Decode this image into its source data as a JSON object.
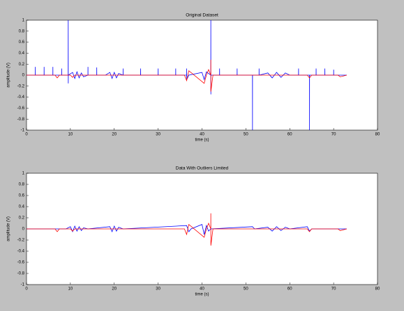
{
  "chart_data": [
    {
      "type": "line",
      "title": "Original Dataset",
      "xlabel": "time (s)",
      "ylabel": "amplitude (V)",
      "xlim": [
        0,
        80
      ],
      "ylim": [
        -1,
        1
      ],
      "xticks": [
        0,
        10,
        20,
        30,
        40,
        50,
        60,
        70,
        80
      ],
      "yticks": [
        -1,
        -0.8,
        -0.6,
        -0.4,
        -0.2,
        0,
        0.2,
        0.4,
        0.6,
        0.8,
        1
      ],
      "series": [
        {
          "color": "#0000ff",
          "x": [
            0,
            2,
            2.01,
            2.02,
            4,
            4.01,
            4.02,
            6,
            6.01,
            6.02,
            8,
            8.01,
            8.02,
            9.5,
            9.51,
            9.52,
            9.53,
            10.5,
            11,
            11.5,
            12,
            12.5,
            13,
            14,
            14.01,
            14.02,
            16,
            16.01,
            16.02,
            18,
            19,
            19.5,
            20,
            20.5,
            21,
            22,
            22.01,
            22.02,
            26,
            26.01,
            26.02,
            30,
            30.01,
            30.02,
            34,
            34.01,
            34.02,
            36.5,
            36.51,
            36.52,
            37,
            40,
            40.5,
            41,
            42,
            42.01,
            42.02,
            42.03,
            44,
            44.01,
            44.02,
            48,
            48.01,
            48.02,
            51.5,
            51.51,
            51.52,
            53,
            53.01,
            53.02,
            55,
            56,
            57,
            58,
            59,
            60,
            62,
            62.01,
            62.02,
            64.5,
            64.51,
            64.52,
            66,
            66.01,
            66.02,
            68,
            68.01,
            68.02,
            70,
            70.01,
            70.02,
            73
          ],
          "values": [
            0,
            0,
            0.15,
            0,
            0,
            0.15,
            0,
            0,
            0.15,
            0,
            0,
            0.12,
            0,
            0,
            1,
            -0.15,
            0,
            0.05,
            -0.06,
            0.06,
            -0.05,
            0.04,
            -0.03,
            0,
            0.15,
            0,
            0,
            0.14,
            0,
            0,
            0.05,
            -0.06,
            0.05,
            -0.05,
            0.03,
            0,
            0.12,
            0,
            0,
            0.12,
            0,
            0,
            0.12,
            0,
            0,
            0.12,
            0,
            0,
            0.12,
            -0.08,
            0,
            0.05,
            -0.08,
            0.06,
            0,
            1,
            -0.35,
            0,
            0,
            0.12,
            0,
            0,
            0.12,
            0,
            0,
            -1,
            0,
            0,
            0.12,
            0,
            0.04,
            -0.05,
            0.05,
            -0.04,
            0.04,
            0,
            0,
            0.12,
            0,
            0,
            -1,
            0,
            0,
            0.12,
            0,
            0,
            0.12,
            0,
            0,
            0.1,
            0,
            0
          ]
        },
        {
          "color": "#ff0000",
          "x": [
            0,
            6.5,
            7,
            7.5,
            10,
            10.5,
            11,
            36,
            36.5,
            37,
            40.5,
            41,
            41.5,
            42,
            42.01,
            42.02,
            42.5,
            64,
            64.5,
            65,
            71,
            71.5,
            73
          ],
          "values": [
            0,
            0,
            -0.05,
            0,
            0,
            -0.04,
            0,
            0,
            -0.1,
            0.08,
            -0.15,
            0,
            0.1,
            0,
            0.28,
            -0.3,
            0,
            0,
            -0.05,
            0,
            0,
            -0.03,
            0
          ]
        }
      ]
    },
    {
      "type": "line",
      "title": "Data With Outliers Limited",
      "xlabel": "time (s)",
      "ylabel": "amplitude (V)",
      "xlim": [
        0,
        80
      ],
      "ylim": [
        -1,
        1
      ],
      "xticks": [
        0,
        10,
        20,
        30,
        40,
        50,
        60,
        70,
        80
      ],
      "yticks": [
        -1,
        -0.8,
        -0.6,
        -0.4,
        -0.2,
        0,
        0.2,
        0.4,
        0.6,
        0.8,
        1
      ],
      "series": [
        {
          "color": "#0000ff",
          "x": [
            0,
            9,
            10,
            10.5,
            11,
            11.5,
            12,
            12.5,
            13,
            14,
            19,
            19.5,
            20,
            20.5,
            21,
            22,
            36.5,
            37,
            37.5,
            40,
            40.5,
            41,
            41.5,
            42,
            51.5,
            52,
            55,
            56,
            57,
            58,
            59,
            60,
            64,
            64.5,
            65,
            73
          ],
          "values": [
            0,
            0,
            0.04,
            -0.05,
            0.05,
            -0.04,
            0.04,
            -0.03,
            0.02,
            0,
            0.04,
            -0.05,
            0.05,
            -0.04,
            0.03,
            0,
            0.06,
            -0.05,
            0,
            0.08,
            -0.1,
            0.06,
            -0.04,
            0,
            0.04,
            0,
            0.03,
            -0.04,
            0.04,
            -0.03,
            0.03,
            0,
            0.04,
            -0.04,
            0,
            0
          ]
        },
        {
          "color": "#ff0000",
          "x": [
            0,
            6.5,
            7,
            7.5,
            10,
            10.5,
            11,
            36,
            36.5,
            37,
            40.5,
            41,
            41.5,
            42,
            42.01,
            42.02,
            42.5,
            64,
            64.5,
            65,
            71,
            71.5,
            73
          ],
          "values": [
            0,
            0,
            -0.05,
            0,
            0,
            -0.04,
            0,
            0,
            -0.1,
            0.08,
            -0.15,
            0,
            0.1,
            0,
            0.28,
            -0.3,
            0,
            0,
            -0.05,
            0,
            0,
            -0.03,
            0
          ]
        }
      ]
    }
  ]
}
